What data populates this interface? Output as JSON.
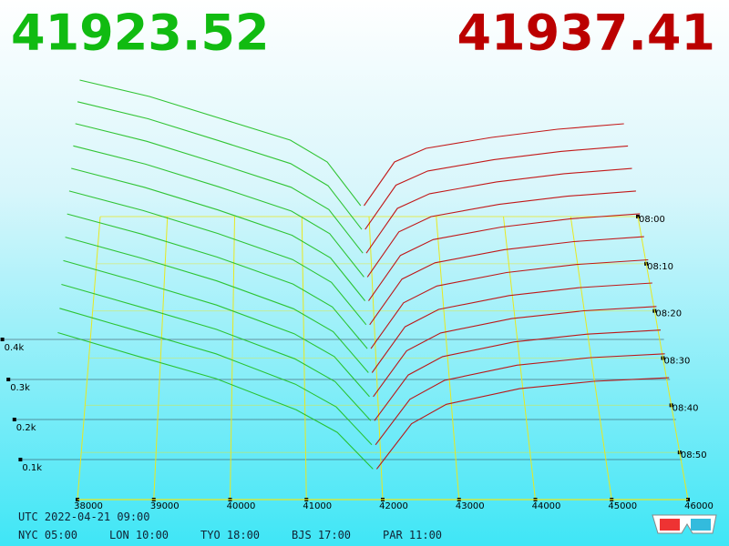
{
  "chart_data": {
    "type": "depth3d",
    "bid_price": 41923.52,
    "ask_price": 41937.41,
    "x_bids": [
      38000,
      39000,
      40000,
      41000,
      41500,
      41900
    ],
    "x_asks": [
      41950,
      42500,
      43000,
      44000,
      45000,
      46000
    ],
    "bid_color": "#1fbf1f",
    "ask_color": "#c00000",
    "snapshots": [
      {
        "time": 480,
        "bids": [
          500,
          440,
          360,
          280,
          200,
          40
        ],
        "asks": [
          40,
          200,
          250,
          290,
          320,
          340
        ]
      },
      {
        "time": 485,
        "bids": [
          488,
          428,
          350,
          270,
          192,
          38
        ],
        "asks": [
          38,
          194,
          244,
          284,
          313,
          332
        ]
      },
      {
        "time": 490,
        "bids": [
          476,
          416,
          340,
          260,
          184,
          36
        ],
        "asks": [
          36,
          188,
          238,
          278,
          306,
          324
        ]
      },
      {
        "time": 495,
        "bids": [
          464,
          404,
          330,
          250,
          176,
          34
        ],
        "asks": [
          34,
          182,
          232,
          272,
          299,
          316
        ]
      },
      {
        "time": 500,
        "bids": [
          452,
          392,
          320,
          240,
          168,
          32
        ],
        "asks": [
          32,
          176,
          226,
          266,
          292,
          308
        ]
      },
      {
        "time": 505,
        "bids": [
          440,
          380,
          310,
          230,
          160,
          30
        ],
        "asks": [
          30,
          170,
          220,
          260,
          285,
          300
        ]
      },
      {
        "time": 510,
        "bids": [
          428,
          368,
          300,
          220,
          152,
          28
        ],
        "asks": [
          28,
          164,
          214,
          254,
          278,
          292
        ]
      },
      {
        "time": 515,
        "bids": [
          416,
          356,
          290,
          210,
          144,
          26
        ],
        "asks": [
          26,
          158,
          208,
          248,
          271,
          284
        ]
      },
      {
        "time": 520,
        "bids": [
          404,
          344,
          280,
          200,
          136,
          24
        ],
        "asks": [
          24,
          152,
          202,
          242,
          264,
          276
        ]
      },
      {
        "time": 525,
        "bids": [
          392,
          332,
          270,
          190,
          128,
          22
        ],
        "asks": [
          22,
          146,
          196,
          236,
          257,
          268
        ]
      },
      {
        "time": 530,
        "bids": [
          380,
          320,
          260,
          180,
          120,
          20
        ],
        "asks": [
          20,
          140,
          190,
          230,
          250,
          260
        ]
      },
      {
        "time": 535,
        "bids": [
          368,
          308,
          250,
          170,
          112,
          18
        ],
        "asks": [
          18,
          134,
          184,
          224,
          243,
          252
        ]
      }
    ],
    "xlim": [
      38000,
      46000
    ],
    "xticks": [
      38000,
      39000,
      40000,
      41000,
      42000,
      43000,
      44000,
      45000,
      46000
    ],
    "ylim": [
      0,
      500
    ],
    "yticks": [
      {
        "value": 100,
        "label": "0.1k"
      },
      {
        "value": 200,
        "label": "0.2k"
      },
      {
        "value": 300,
        "label": "0.3k"
      },
      {
        "value": 400,
        "label": "0.4k"
      }
    ],
    "tlim": [
      480,
      540
    ],
    "tticks": [
      {
        "value": 480,
        "label": "08:00"
      },
      {
        "value": 490,
        "label": "08:10"
      },
      {
        "value": 500,
        "label": "08:20"
      },
      {
        "value": 510,
        "label": "08:30"
      },
      {
        "value": 520,
        "label": "08:40"
      },
      {
        "value": 530,
        "label": "08:50"
      }
    ],
    "utc": "UTC 2022-04-21 09:00",
    "clocks": [
      "NYC 05:00",
      "LON 10:00",
      "TYO 18:00",
      "BJS 17:00",
      "PAR 11:00"
    ]
  }
}
